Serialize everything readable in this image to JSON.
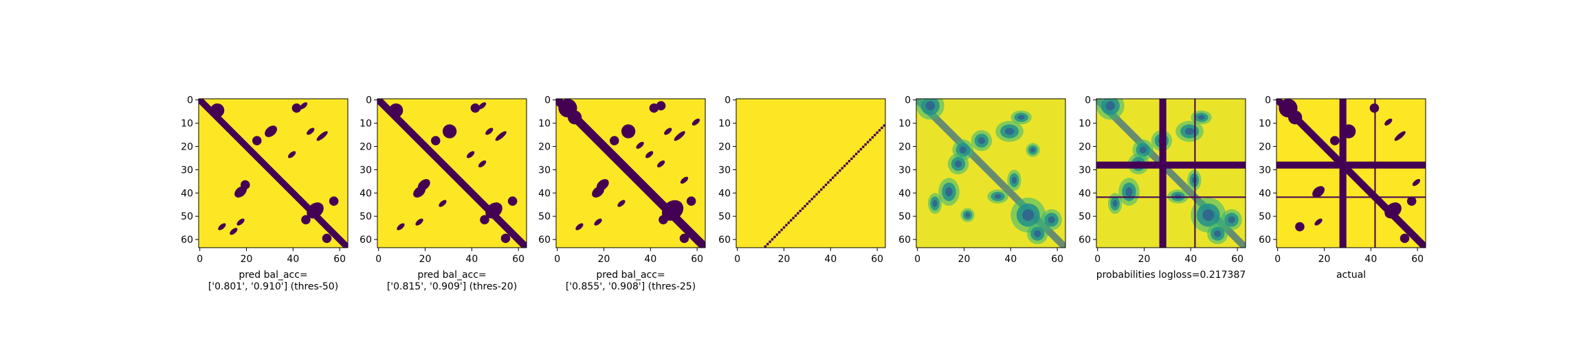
{
  "colors": {
    "dark": "#440154",
    "light": "#fde725",
    "mid_blue": "#31688e",
    "mid_teal": "#21918c",
    "mid_green": "#35b779",
    "yellow_green": "#90d743"
  },
  "chart_data": [
    {
      "type": "heatmap",
      "panel": "pred-thres-50",
      "size": 64,
      "xticks": [
        "0",
        "20",
        "40",
        "60"
      ],
      "yticks": [
        "0",
        "10",
        "20",
        "30",
        "40",
        "50",
        "60"
      ],
      "xlim": [
        0,
        64
      ],
      "ylim": [
        64,
        0
      ],
      "caption_lines": [
        "pred bal_acc=",
        "['0.801', '0.910'] (thres-50)"
      ],
      "diag_width": 2.0,
      "blobs": [
        [
          8,
          5,
          3,
          3
        ],
        [
          18,
          40,
          3,
          2
        ],
        [
          20,
          37,
          2,
          2
        ],
        [
          25,
          18,
          2,
          2
        ],
        [
          31,
          14,
          3,
          2
        ],
        [
          42,
          4,
          2,
          2
        ],
        [
          45,
          3,
          2,
          1
        ],
        [
          48,
          14,
          2,
          1
        ],
        [
          53,
          16,
          3,
          1
        ],
        [
          18,
          53,
          2,
          1
        ],
        [
          40,
          24,
          2,
          1
        ],
        [
          50,
          48,
          4,
          3
        ],
        [
          46,
          52,
          2,
          2
        ],
        [
          58,
          44,
          2,
          2
        ],
        [
          55,
          60,
          2,
          2
        ],
        [
          10,
          55,
          2,
          1
        ],
        [
          15,
          57,
          2,
          1
        ]
      ]
    },
    {
      "type": "heatmap",
      "panel": "pred-thres-20",
      "size": 64,
      "xticks": [
        "0",
        "20",
        "40",
        "60"
      ],
      "yticks": [
        "0",
        "10",
        "20",
        "30",
        "40",
        "50",
        "60"
      ],
      "xlim": [
        0,
        64
      ],
      "ylim": [
        64,
        0
      ],
      "caption_lines": [
        "pred bal_acc=",
        "['0.815', '0.909'] (thres-20)"
      ],
      "diag_width": 2.2,
      "blobs": [
        [
          8,
          5,
          3,
          3
        ],
        [
          18,
          40,
          3,
          2
        ],
        [
          20,
          37,
          3,
          2
        ],
        [
          25,
          18,
          2,
          2
        ],
        [
          31,
          14,
          3,
          3
        ],
        [
          42,
          4,
          2,
          2
        ],
        [
          45,
          3,
          2,
          1
        ],
        [
          48,
          14,
          2,
          1
        ],
        [
          53,
          16,
          3,
          1
        ],
        [
          18,
          53,
          2,
          1
        ],
        [
          40,
          24,
          2,
          1
        ],
        [
          50,
          48,
          4,
          3
        ],
        [
          46,
          52,
          2,
          2
        ],
        [
          58,
          44,
          2,
          2
        ],
        [
          55,
          60,
          2,
          2
        ],
        [
          10,
          55,
          2,
          1
        ],
        [
          28,
          45,
          2,
          1
        ],
        [
          45,
          28,
          2,
          1
        ]
      ]
    },
    {
      "type": "heatmap",
      "panel": "pred-thres-25",
      "size": 64,
      "xticks": [
        "0",
        "20",
        "40",
        "60"
      ],
      "yticks": [
        "0",
        "10",
        "20",
        "30",
        "40",
        "50",
        "60"
      ],
      "xlim": [
        0,
        64
      ],
      "ylim": [
        64,
        0
      ],
      "caption_lines": [
        "pred bal_acc=",
        "['0.855', '0.908'] (thres-25)"
      ],
      "diag_width": 2.6,
      "blobs": [
        [
          5,
          4,
          4,
          4
        ],
        [
          8,
          8,
          3,
          3
        ],
        [
          18,
          40,
          3,
          2
        ],
        [
          20,
          37,
          3,
          2
        ],
        [
          25,
          18,
          2,
          2
        ],
        [
          31,
          14,
          3,
          3
        ],
        [
          42,
          4,
          2,
          2
        ],
        [
          45,
          3,
          2,
          2
        ],
        [
          48,
          14,
          2,
          1
        ],
        [
          53,
          16,
          3,
          1
        ],
        [
          18,
          53,
          2,
          1
        ],
        [
          40,
          24,
          2,
          1
        ],
        [
          50,
          48,
          5,
          4
        ],
        [
          46,
          52,
          2,
          2
        ],
        [
          58,
          44,
          2,
          2
        ],
        [
          55,
          60,
          2,
          2
        ],
        [
          10,
          55,
          2,
          1
        ],
        [
          28,
          45,
          2,
          1
        ],
        [
          45,
          28,
          2,
          1
        ],
        [
          36,
          20,
          2,
          1
        ],
        [
          55,
          35,
          2,
          1
        ],
        [
          60,
          10,
          2,
          1
        ]
      ]
    },
    {
      "type": "heatmap",
      "panel": "sparse-diagonal",
      "size": 64,
      "xticks": [
        "0",
        "20",
        "40",
        "60"
      ],
      "yticks": [
        "0",
        "10",
        "20",
        "30",
        "40",
        "50",
        "60"
      ],
      "xlim": [
        0,
        64
      ],
      "ylim": [
        64,
        0
      ],
      "caption_lines": [],
      "points_from": 12,
      "points_to": 63,
      "points_step": 1
    },
    {
      "type": "heatmap",
      "panel": "probabilities",
      "size": 64,
      "xticks": [
        "0",
        "20",
        "40",
        "60"
      ],
      "yticks": [
        "0",
        "10",
        "20",
        "30",
        "40",
        "50",
        "60"
      ],
      "xlim": [
        0,
        64
      ],
      "ylim": [
        64,
        0
      ],
      "caption_lines": [],
      "blobs": [
        [
          6,
          3,
          4,
          4
        ],
        [
          20,
          22,
          3,
          3
        ],
        [
          40,
          14,
          4,
          3
        ],
        [
          14,
          40,
          3,
          4
        ],
        [
          28,
          18,
          3,
          3
        ],
        [
          18,
          28,
          3,
          3
        ],
        [
          48,
          50,
          5,
          5
        ],
        [
          45,
          8,
          3,
          2
        ],
        [
          8,
          45,
          2,
          3
        ],
        [
          52,
          58,
          3,
          3
        ],
        [
          58,
          52,
          3,
          3
        ],
        [
          35,
          42,
          3,
          2
        ],
        [
          42,
          35,
          2,
          3
        ],
        [
          22,
          50,
          2,
          2
        ],
        [
          50,
          22,
          2,
          2
        ]
      ]
    },
    {
      "type": "heatmap",
      "panel": "probabilities-logloss",
      "size": 64,
      "xticks": [
        "0",
        "20",
        "40",
        "60"
      ],
      "yticks": [
        "0",
        "10",
        "20",
        "30",
        "40",
        "50",
        "60"
      ],
      "xlim": [
        0,
        64
      ],
      "ylim": [
        64,
        0
      ],
      "caption_lines": [
        "probabilities logloss=0.217387"
      ],
      "band_lo": 27,
      "band_hi": 30,
      "line_at": 42,
      "blobs": [
        [
          6,
          3,
          4,
          4
        ],
        [
          20,
          22,
          3,
          3
        ],
        [
          40,
          14,
          4,
          3
        ],
        [
          14,
          40,
          3,
          4
        ],
        [
          28,
          18,
          3,
          3
        ],
        [
          18,
          28,
          3,
          3
        ],
        [
          48,
          50,
          5,
          5
        ],
        [
          45,
          8,
          3,
          2
        ],
        [
          8,
          45,
          2,
          3
        ],
        [
          52,
          58,
          3,
          3
        ],
        [
          58,
          52,
          3,
          3
        ],
        [
          35,
          42,
          3,
          2
        ],
        [
          42,
          35,
          2,
          3
        ]
      ]
    },
    {
      "type": "heatmap",
      "panel": "actual",
      "size": 64,
      "xticks": [
        "0",
        "20",
        "40",
        "60"
      ],
      "yticks": [
        "0",
        "10",
        "20",
        "30",
        "40",
        "50",
        "60"
      ],
      "xlim": [
        0,
        64
      ],
      "ylim": [
        64,
        0
      ],
      "caption_lines": [
        "actual"
      ],
      "band_lo": 27,
      "band_hi": 30,
      "line_at": 42,
      "diag_width": 2.2,
      "blobs": [
        [
          5,
          4,
          4,
          4
        ],
        [
          8,
          8,
          3,
          3
        ],
        [
          18,
          40,
          3,
          2
        ],
        [
          25,
          18,
          2,
          2
        ],
        [
          31,
          14,
          3,
          3
        ],
        [
          42,
          4,
          2,
          2
        ],
        [
          50,
          48,
          4,
          3
        ],
        [
          58,
          44,
          2,
          2
        ],
        [
          55,
          60,
          2,
          2
        ],
        [
          53,
          16,
          3,
          1
        ],
        [
          18,
          53,
          2,
          1
        ],
        [
          10,
          55,
          2,
          2
        ],
        [
          48,
          10,
          2,
          1
        ],
        [
          60,
          36,
          2,
          1
        ]
      ]
    }
  ]
}
